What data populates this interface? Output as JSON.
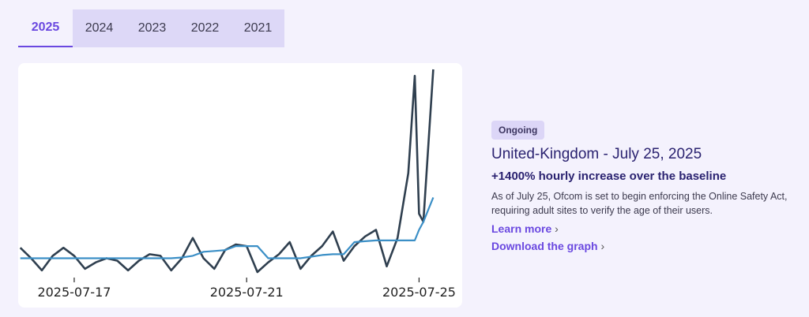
{
  "tabs": [
    "2025",
    "2024",
    "2023",
    "2022",
    "2021"
  ],
  "active_tab": 0,
  "chart_data": {
    "type": "line",
    "x": [
      15.75,
      16,
      16.25,
      16.5,
      16.75,
      17,
      17.25,
      17.5,
      17.75,
      18,
      18.25,
      18.5,
      18.75,
      19,
      19.25,
      19.5,
      19.75,
      20,
      20.25,
      20.5,
      20.75,
      21,
      21.25,
      21.5,
      21.75,
      22,
      22.25,
      22.5,
      22.75,
      23,
      23.25,
      23.5,
      23.75,
      24,
      24.25,
      24.5,
      24.75,
      24.9,
      25,
      25.1,
      25.33
    ],
    "series": [
      {
        "color": "#2f3f4f",
        "values": [
          38,
          25,
          10,
          28,
          38,
          28,
          12,
          20,
          25,
          22,
          10,
          22,
          30,
          28,
          10,
          25,
          50,
          25,
          12,
          35,
          42,
          40,
          8,
          20,
          30,
          45,
          12,
          28,
          40,
          58,
          22,
          40,
          52,
          60,
          15,
          50,
          130,
          250,
          80,
          70,
          258
        ]
      },
      {
        "color": "#3b8fc6",
        "values": [
          25,
          25,
          25,
          25,
          25,
          25,
          25,
          25,
          25,
          25,
          25,
          25,
          25,
          25,
          25,
          26,
          28,
          33,
          34,
          35,
          40,
          40,
          40,
          25,
          25,
          25,
          25,
          27,
          29,
          30,
          30,
          45,
          46,
          47,
          47,
          47,
          47,
          47,
          60,
          70,
          100
        ]
      }
    ],
    "xlim": [
      15.7,
      26.0
    ],
    "xticks": [
      {
        "value": 17,
        "label": "2025-07-17"
      },
      {
        "value": 21,
        "label": "2025-07-21"
      },
      {
        "value": 25,
        "label": "2025-07-25"
      }
    ]
  },
  "card": {
    "badge": "Ongoing",
    "title": "United-Kingdom - July 25, 2025",
    "subtitle": "+1400% hourly increase over the baseline",
    "description": "As of July 25, Ofcom is set to begin enforcing the Online Safety Act, requiring adult sites to verify the age of their users.",
    "links": [
      "Learn more",
      "Download the graph"
    ]
  }
}
